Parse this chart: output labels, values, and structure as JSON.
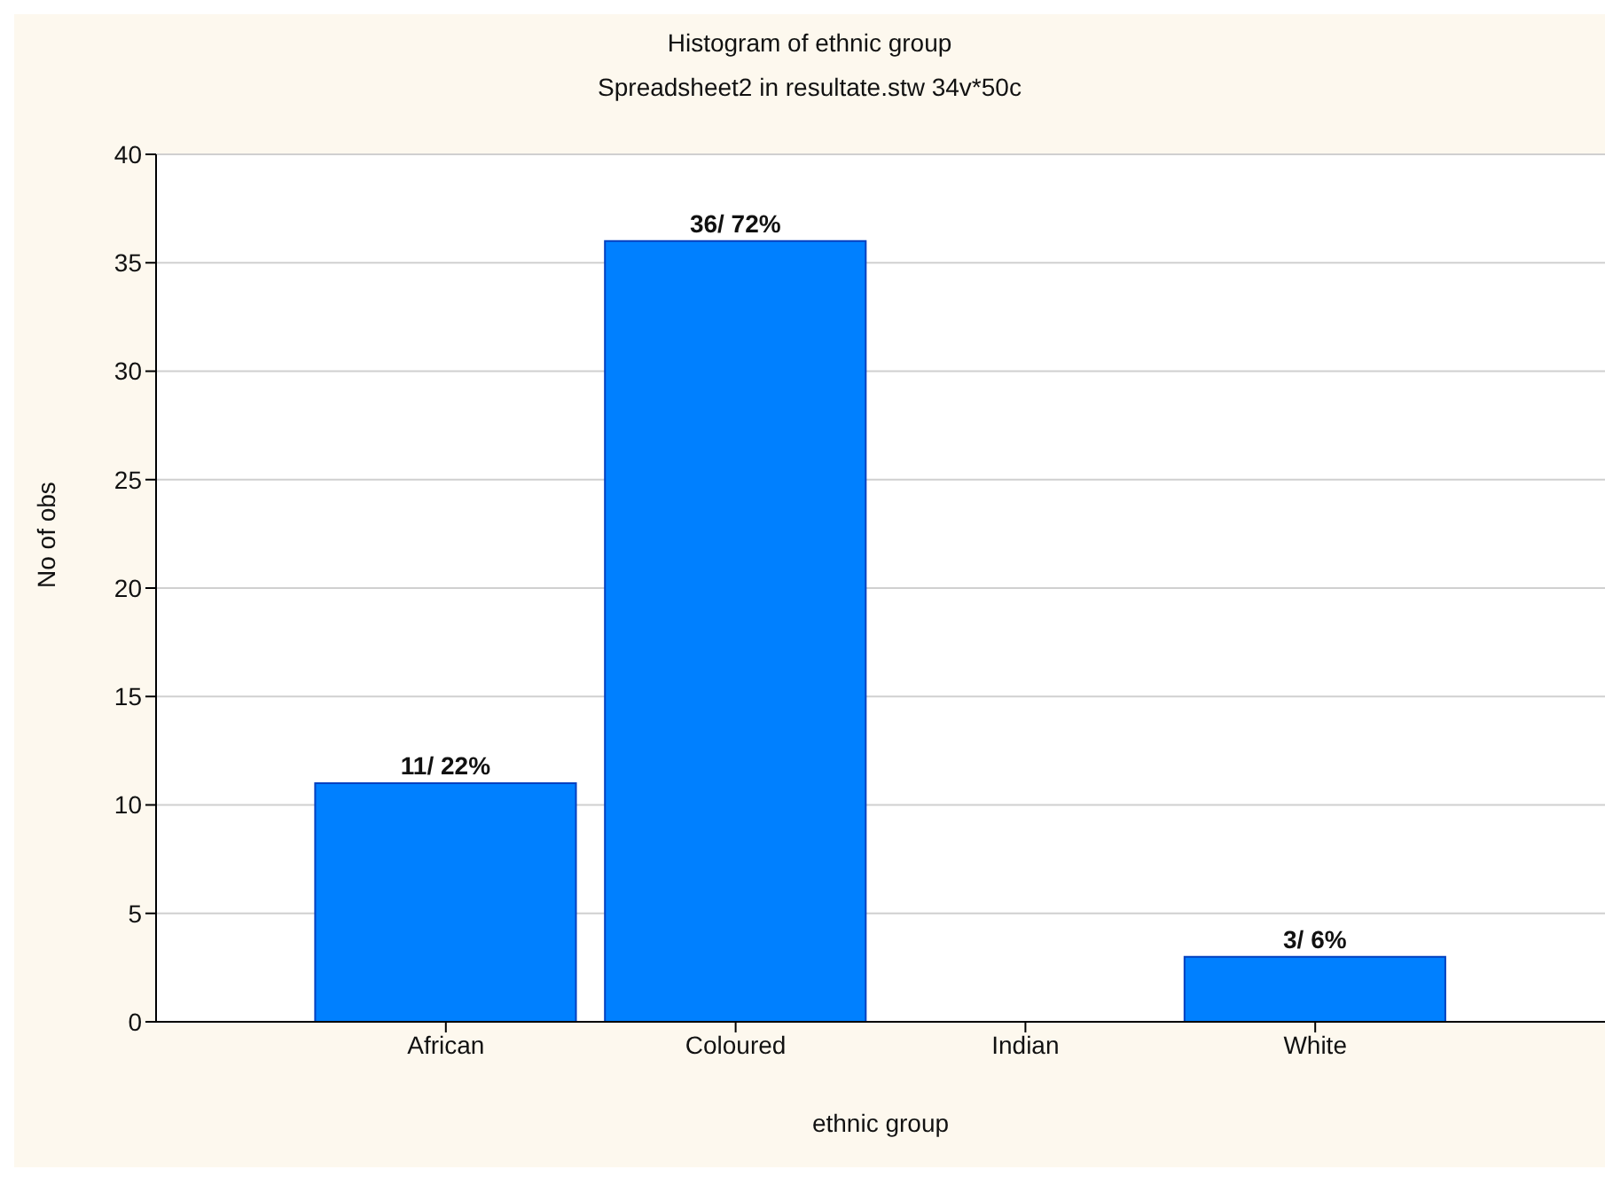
{
  "chart_data": {
    "type": "bar",
    "title": "Histogram of ethnic group",
    "subtitle": "Spreadsheet2 in resultate.stw 34v*50c",
    "xlabel": "ethnic group",
    "ylabel": "No of obs",
    "categories": [
      "African",
      "Coloured",
      "Indian",
      "White"
    ],
    "values": [
      11,
      36,
      0,
      3
    ],
    "color": "#0080ff",
    "value_labels": [
      "11/ 22%",
      "36/ 72%",
      null,
      "3/ 6%"
    ],
    "ylim": [
      0,
      40
    ],
    "yticks": [
      0,
      5,
      10,
      15,
      20,
      25,
      30,
      35,
      40
    ],
    "grid": "y"
  }
}
